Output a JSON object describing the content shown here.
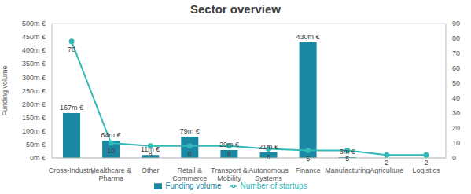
{
  "chart_data": {
    "type": "bar",
    "title": "Sector overview",
    "ylabel": "Funding volume",
    "categories": [
      "Cross-Industry",
      "Healthcare & Pharma",
      "Other",
      "Retail & Commerce",
      "Transport & Mobility",
      "Autonomous Systems",
      "Finance",
      "Manufacturing",
      "Agriculture",
      "Logistics"
    ],
    "series": [
      {
        "name": "Funding volume",
        "type": "bar",
        "color": "#1a87a3",
        "values": [
          167,
          64,
          11,
          79,
          29,
          21,
          430,
          3,
          null,
          null
        ],
        "value_labels": [
          "167m €",
          "64m €",
          "11m €",
          "79m €",
          "29m €",
          "21m €",
          "430m €",
          "3m €",
          null,
          null
        ]
      },
      {
        "name": "Number of startups",
        "type": "line",
        "color": "#33b8b8",
        "marker": "circle",
        "axis": "y2",
        "values": [
          78,
          10,
          8,
          8,
          8,
          6,
          5,
          5,
          2,
          2
        ]
      }
    ],
    "ylim": [
      0,
      500
    ],
    "yticks": [
      {
        "value": 0,
        "label": "0m €"
      },
      {
        "value": 50,
        "label": "50m €"
      },
      {
        "value": 100,
        "label": "100m €"
      },
      {
        "value": 150,
        "label": "150m €"
      },
      {
        "value": 200,
        "label": "200m €"
      },
      {
        "value": 250,
        "label": "250m €"
      },
      {
        "value": 300,
        "label": "300m €"
      },
      {
        "value": 350,
        "label": "350m €"
      },
      {
        "value": 400,
        "label": "400m €"
      },
      {
        "value": 450,
        "label": "450m €"
      },
      {
        "value": 500,
        "label": "500m €"
      }
    ],
    "y2lim": [
      0,
      90
    ],
    "y2ticks": [
      0,
      10,
      20,
      30,
      40,
      50,
      60,
      70,
      80,
      90
    ],
    "grid": true,
    "legend": "bottom",
    "data_labels": true
  }
}
